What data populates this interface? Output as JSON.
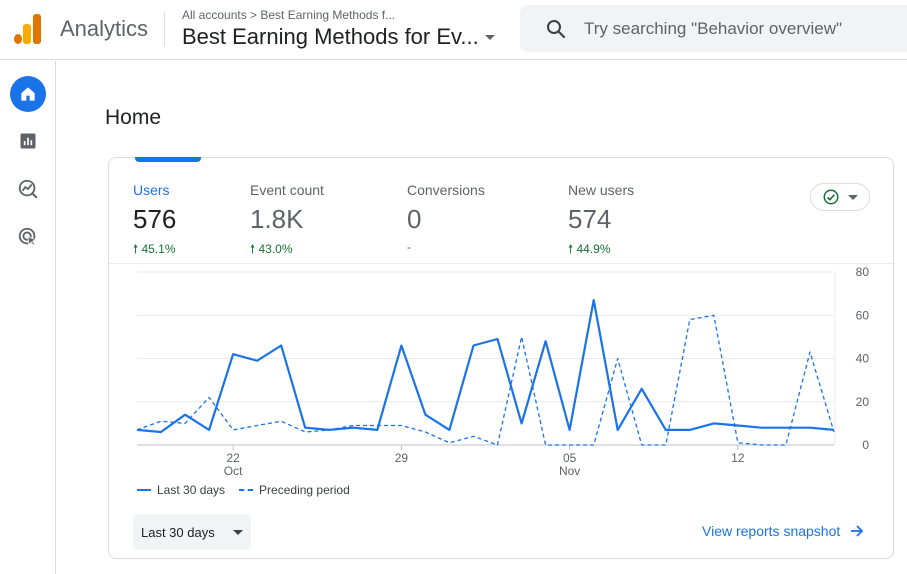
{
  "app": {
    "name": "Analytics",
    "breadcrumb": "All accounts > Best Earning Methods f...",
    "property_name": "Best Earning Methods for Ev...",
    "logo_colors": [
      "#f9ab00",
      "#e37400"
    ]
  },
  "search": {
    "placeholder": "Try searching \"Behavior overview\""
  },
  "nav": {
    "items": [
      {
        "icon": "home-icon",
        "active": true
      },
      {
        "icon": "reports-icon",
        "active": false
      },
      {
        "icon": "explore-icon",
        "active": false
      },
      {
        "icon": "advertising-icon",
        "active": false
      }
    ]
  },
  "page": {
    "title": "Home"
  },
  "metrics": [
    {
      "label": "Users",
      "value": "576",
      "change": "45.1%",
      "direction": "up",
      "active": true
    },
    {
      "label": "Event count",
      "value": "1.8K",
      "change": "43.0%",
      "direction": "up",
      "active": false
    },
    {
      "label": "Conversions",
      "value": "0",
      "change": "-",
      "direction": "none",
      "active": false
    },
    {
      "label": "New users",
      "value": "574",
      "change": "44.9%",
      "direction": "up",
      "active": false
    }
  ],
  "colors": {
    "accent": "#1a73e8",
    "positive": "#137333",
    "check": "#137333"
  },
  "chart_data": {
    "type": "line",
    "ylim": [
      0,
      80
    ],
    "y_ticks": [
      "80",
      "60",
      "40",
      "20",
      "0"
    ],
    "x_ticks": [
      {
        "day": 4,
        "label": "22",
        "sublabel": "Oct"
      },
      {
        "day": 11,
        "label": "29",
        "sublabel": ""
      },
      {
        "day": 18,
        "label": "05",
        "sublabel": "Nov"
      },
      {
        "day": 25,
        "label": "12",
        "sublabel": ""
      }
    ],
    "series": [
      {
        "name": "Last 30 days",
        "style": "solid",
        "values": [
          7,
          6,
          14,
          7,
          42,
          39,
          46,
          8,
          7,
          8,
          7,
          46,
          14,
          7,
          46,
          49,
          10,
          48,
          7,
          67,
          7,
          26,
          7,
          7,
          10,
          9,
          8,
          8,
          8,
          7
        ]
      },
      {
        "name": "Preceding period",
        "style": "dashed",
        "values": [
          7,
          11,
          10,
          22,
          7,
          9,
          11,
          6,
          7,
          9,
          9,
          9,
          6,
          1,
          4,
          0,
          50,
          0,
          0,
          0,
          40,
          0,
          0,
          58,
          60,
          1,
          0,
          0,
          43,
          6
        ]
      }
    ]
  },
  "legend": {
    "current": "Last 30 days",
    "previous": "Preceding period"
  },
  "date_range": {
    "label": "Last 30 days"
  },
  "snapshot_link": {
    "label": "View reports snapshot"
  }
}
